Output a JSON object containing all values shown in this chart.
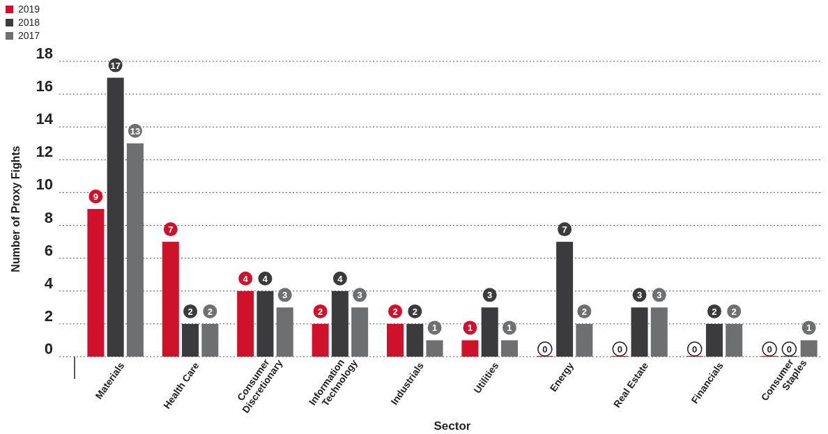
{
  "chart_data": {
    "type": "bar",
    "xlabel": "Sector",
    "ylabel": "Number of Proxy Fights",
    "categories": [
      "Materials",
      "Health Care",
      "Consumer Discretionary",
      "Information Technology",
      "Industrials",
      "Utilities",
      "Energy",
      "Real Estate",
      "Financials",
      "Consumer Staples"
    ],
    "series": [
      {
        "name": "2019",
        "color": "#d0112b",
        "values": [
          9,
          7,
          4,
          2,
          2,
          1,
          0,
          0,
          0,
          0
        ]
      },
      {
        "name": "2018",
        "color": "#3b3b3d",
        "values": [
          17,
          2,
          4,
          4,
          2,
          3,
          7,
          3,
          2,
          0
        ]
      },
      {
        "name": "2017",
        "color": "#6e6f71",
        "values": [
          13,
          2,
          3,
          3,
          1,
          1,
          2,
          3,
          2,
          1
        ]
      }
    ],
    "ylim": [
      0,
      18
    ],
    "yticks": [
      0,
      2,
      4,
      6,
      8,
      10,
      12,
      14,
      16,
      18
    ],
    "grid": "y",
    "legend": "top left",
    "data_labels": true
  }
}
